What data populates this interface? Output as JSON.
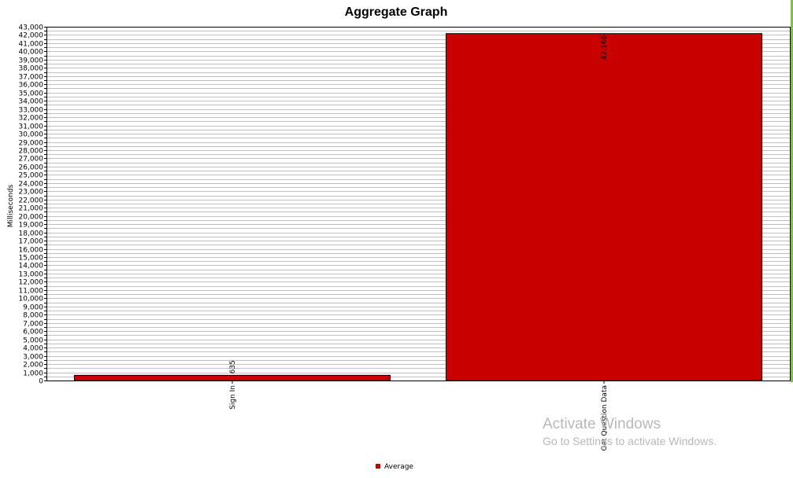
{
  "chart_data": {
    "type": "bar",
    "title": "Aggregate Graph",
    "ylabel": "Milliseconds",
    "xlabel": "",
    "categories": [
      "Sign In",
      "Get Question Data"
    ],
    "series": [
      {
        "name": "Average",
        "values": [
          635,
          42166
        ],
        "data_labels": [
          "635",
          "42,166"
        ]
      }
    ],
    "ylim": [
      0,
      43000
    ],
    "ytick_step": 500,
    "ytick_label_step": 1000,
    "grid": true,
    "legend_position": "bottom-center",
    "bar_color": "#c80000",
    "border_color": "#000000"
  },
  "watermark": {
    "title": "Activate Windows",
    "subtitle": "Go to Settings to activate Windows."
  },
  "colors": {
    "grid": "#c0c0c0",
    "right_edge_accent": "#7cc142"
  }
}
